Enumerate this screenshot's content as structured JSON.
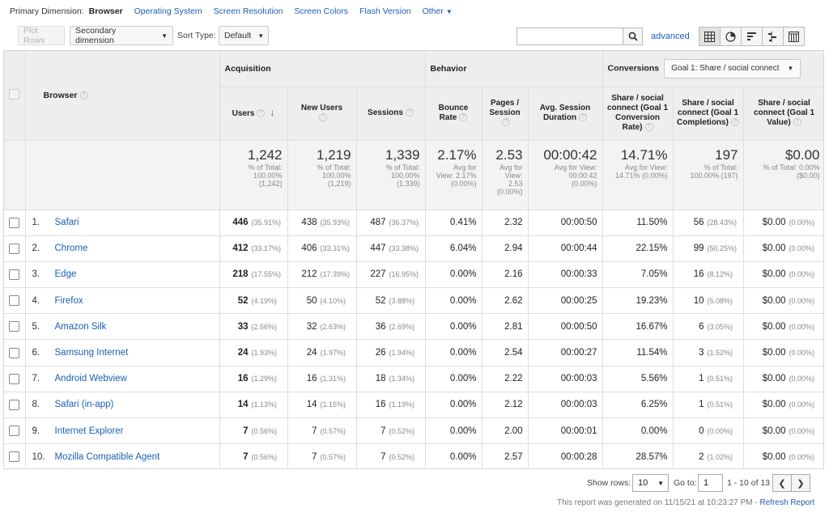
{
  "primary_dimension": {
    "label": "Primary Dimension:",
    "active": "Browser",
    "options": [
      "Operating System",
      "Screen Resolution",
      "Screen Colors",
      "Flash Version"
    ],
    "other": "Other"
  },
  "toolbar": {
    "plot_rows": "Plot Rows",
    "secondary_dimension": "Secondary dimension",
    "sort_type_label": "Sort Type:",
    "sort_type_value": "Default",
    "search_placeholder": "",
    "advanced": "advanced",
    "view_icons": [
      "table-view-icon",
      "pie-view-icon",
      "performance-view-icon",
      "comparison-view-icon",
      "pivot-view-icon"
    ]
  },
  "table": {
    "browser_header": "Browser",
    "groups": {
      "acquisition": "Acquisition",
      "behavior": "Behavior",
      "conversions": "Conversions",
      "goal_select": "Goal 1: Share / social connect"
    },
    "columns": {
      "users": "Users",
      "new_users": "New Users",
      "sessions": "Sessions",
      "bounce_rate_1": "Bounce",
      "bounce_rate_2": "Rate",
      "pages_session_1": "Pages /",
      "pages_session_2": "Session",
      "avg_duration_1": "Avg. Session",
      "avg_duration_2": "Duration",
      "conv_rate_1": "Share / social",
      "conv_rate_2": "connect (Goal 1",
      "conv_rate_3": "Conversion",
      "conv_rate_4": "Rate)",
      "completions_1": "Share / social",
      "completions_2": "connect (Goal 1",
      "completions_3": "Completions)",
      "value_1": "Share / social",
      "value_2": "connect (Goal 1",
      "value_3": "Value)"
    },
    "totals": {
      "users": {
        "value": "1,242",
        "s1": "% of Total:",
        "s2": "100.00%",
        "s3": "(1,242)"
      },
      "new_users": {
        "value": "1,219",
        "s1": "% of Total:",
        "s2": "100.00%",
        "s3": "(1,219)"
      },
      "sessions": {
        "value": "1,339",
        "s1": "% of Total:",
        "s2": "100.00%",
        "s3": "(1,339)"
      },
      "bounce_rate": {
        "value": "2.17%",
        "s1": "Avg for",
        "s2": "View: 2.17%",
        "s3": "(0.00%)"
      },
      "pages_session": {
        "value": "2.53",
        "s1": "Avg for",
        "s2": "View:",
        "s3": "2.53",
        "s4": "(0.00%)"
      },
      "avg_duration": {
        "value": "00:00:42",
        "s1": "Avg for View:",
        "s2": "00:00:42",
        "s3": "(0.00%)"
      },
      "conv_rate": {
        "value": "14.71%",
        "s1": "Avg for View:",
        "s2": "14.71% (0.00%)"
      },
      "completions": {
        "value": "197",
        "s1": "% of Total:",
        "s2": "100.00% (197)"
      },
      "value": {
        "value": "$0.00",
        "s1": "% of Total: 0.00%",
        "s2": "($0.00)"
      }
    },
    "rows": [
      {
        "idx": "1.",
        "browser": "Safari",
        "users": "446",
        "users_pct": "(35.91%)",
        "new_users": "438",
        "new_users_pct": "(35.93%)",
        "sessions": "487",
        "sessions_pct": "(36.37%)",
        "bounce": "0.41%",
        "pages": "2.32",
        "duration": "00:00:50",
        "conv_rate": "11.50%",
        "completions": "56",
        "completions_pct": "(28.43%)",
        "value": "$0.00",
        "value_pct": "(0.00%)"
      },
      {
        "idx": "2.",
        "browser": "Chrome",
        "users": "412",
        "users_pct": "(33.17%)",
        "new_users": "406",
        "new_users_pct": "(33.31%)",
        "sessions": "447",
        "sessions_pct": "(33.38%)",
        "bounce": "6.04%",
        "pages": "2.94",
        "duration": "00:00:44",
        "conv_rate": "22.15%",
        "completions": "99",
        "completions_pct": "(50.25%)",
        "value": "$0.00",
        "value_pct": "(0.00%)"
      },
      {
        "idx": "3.",
        "browser": "Edge",
        "users": "218",
        "users_pct": "(17.55%)",
        "new_users": "212",
        "new_users_pct": "(17.39%)",
        "sessions": "227",
        "sessions_pct": "(16.95%)",
        "bounce": "0.00%",
        "pages": "2.16",
        "duration": "00:00:33",
        "conv_rate": "7.05%",
        "completions": "16",
        "completions_pct": "(8.12%)",
        "value": "$0.00",
        "value_pct": "(0.00%)"
      },
      {
        "idx": "4.",
        "browser": "Firefox",
        "users": "52",
        "users_pct": "(4.19%)",
        "new_users": "50",
        "new_users_pct": "(4.10%)",
        "sessions": "52",
        "sessions_pct": "(3.88%)",
        "bounce": "0.00%",
        "pages": "2.62",
        "duration": "00:00:25",
        "conv_rate": "19.23%",
        "completions": "10",
        "completions_pct": "(5.08%)",
        "value": "$0.00",
        "value_pct": "(0.00%)"
      },
      {
        "idx": "5.",
        "browser": "Amazon Silk",
        "users": "33",
        "users_pct": "(2.66%)",
        "new_users": "32",
        "new_users_pct": "(2.63%)",
        "sessions": "36",
        "sessions_pct": "(2.69%)",
        "bounce": "0.00%",
        "pages": "2.81",
        "duration": "00:00:50",
        "conv_rate": "16.67%",
        "completions": "6",
        "completions_pct": "(3.05%)",
        "value": "$0.00",
        "value_pct": "(0.00%)"
      },
      {
        "idx": "6.",
        "browser": "Samsung Internet",
        "users": "24",
        "users_pct": "(1.93%)",
        "new_users": "24",
        "new_users_pct": "(1.97%)",
        "sessions": "26",
        "sessions_pct": "(1.94%)",
        "bounce": "0.00%",
        "pages": "2.54",
        "duration": "00:00:27",
        "conv_rate": "11.54%",
        "completions": "3",
        "completions_pct": "(1.52%)",
        "value": "$0.00",
        "value_pct": "(0.00%)"
      },
      {
        "idx": "7.",
        "browser": "Android Webview",
        "users": "16",
        "users_pct": "(1.29%)",
        "new_users": "16",
        "new_users_pct": "(1.31%)",
        "sessions": "18",
        "sessions_pct": "(1.34%)",
        "bounce": "0.00%",
        "pages": "2.22",
        "duration": "00:00:03",
        "conv_rate": "5.56%",
        "completions": "1",
        "completions_pct": "(0.51%)",
        "value": "$0.00",
        "value_pct": "(0.00%)"
      },
      {
        "idx": "8.",
        "browser": "Safari (in-app)",
        "users": "14",
        "users_pct": "(1.13%)",
        "new_users": "14",
        "new_users_pct": "(1.15%)",
        "sessions": "16",
        "sessions_pct": "(1.19%)",
        "bounce": "0.00%",
        "pages": "2.12",
        "duration": "00:00:03",
        "conv_rate": "6.25%",
        "completions": "1",
        "completions_pct": "(0.51%)",
        "value": "$0.00",
        "value_pct": "(0.00%)"
      },
      {
        "idx": "9.",
        "browser": "Internet Explorer",
        "users": "7",
        "users_pct": "(0.56%)",
        "new_users": "7",
        "new_users_pct": "(0.57%)",
        "sessions": "7",
        "sessions_pct": "(0.52%)",
        "bounce": "0.00%",
        "pages": "2.00",
        "duration": "00:00:01",
        "conv_rate": "0.00%",
        "completions": "0",
        "completions_pct": "(0.00%)",
        "value": "$0.00",
        "value_pct": "(0.00%)"
      },
      {
        "idx": "10.",
        "browser": "Mozilla Compatible Agent",
        "users": "7",
        "users_pct": "(0.56%)",
        "new_users": "7",
        "new_users_pct": "(0.57%)",
        "sessions": "7",
        "sessions_pct": "(0.52%)",
        "bounce": "0.00%",
        "pages": "2.57",
        "duration": "00:00:28",
        "conv_rate": "28.57%",
        "completions": "2",
        "completions_pct": "(1.02%)",
        "value": "$0.00",
        "value_pct": "(0.00%)"
      }
    ]
  },
  "pagination": {
    "show_rows_label": "Show rows:",
    "show_rows_value": "10",
    "goto_label": "Go to:",
    "goto_value": "1",
    "range": "1 - 10 of 13"
  },
  "report_note": {
    "text": "This report was generated on 11/15/21 at 10:23:27 PM - ",
    "refresh": "Refresh Report"
  },
  "colors": {
    "link": "#1a5fb4",
    "header_bg": "#eeeeee",
    "totals_bg": "#f3f3f3"
  }
}
